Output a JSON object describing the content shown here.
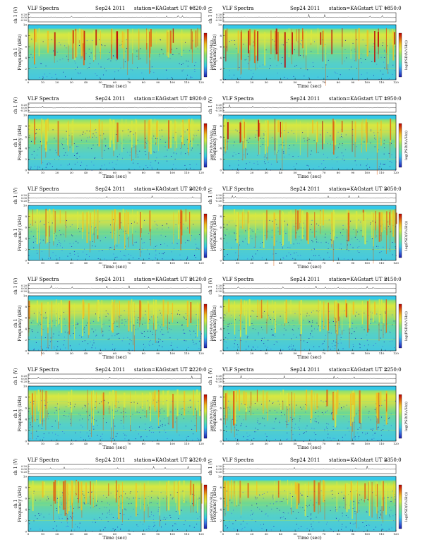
{
  "page": {
    "title_left": "VLF Spectra",
    "date": "Sep24 2011",
    "station": "station=KAG",
    "ut_prefix": "start  UT =",
    "panels": [
      {
        "ut": "1820:0",
        "burst": 1.0,
        "seed": 11
      },
      {
        "ut": "1850:0",
        "burst": 1.0,
        "seed": 23
      },
      {
        "ut": "1920:0",
        "burst": 0.65,
        "seed": 37
      },
      {
        "ut": "1950:0",
        "burst": 0.85,
        "seed": 41
      },
      {
        "ut": "2020:0",
        "burst": 0.7,
        "seed": 53
      },
      {
        "ut": "2050:0",
        "burst": 0.7,
        "seed": 67
      },
      {
        "ut": "2120:0",
        "burst": 0.5,
        "seed": 71
      },
      {
        "ut": "2150:0",
        "burst": 0.5,
        "seed": 83
      },
      {
        "ut": "2220:0",
        "burst": 0.55,
        "seed": 97
      },
      {
        "ut": "2250:0",
        "burst": 0.55,
        "seed": 101
      },
      {
        "ut": "2320:0",
        "burst": 0.6,
        "seed": 113
      },
      {
        "ut": "2350:0",
        "burst": 0.6,
        "seed": 127
      }
    ]
  },
  "labels": {
    "ch_label": "ch 1 (V)",
    "ch_ticks": [
      "0.20",
      "0.00",
      "-0.20"
    ],
    "ylabel_left": "ch 1\nFrequency (kHz)",
    "ylabel_right": "Frequency (kHz)",
    "xlabel": "Time  (sec)",
    "cbar_label": "log(PSD(V/√Hz))"
  },
  "chart_data": {
    "type": "heatmap",
    "xlabel": "Time (sec)",
    "ylabel": "Frequency (kHz)",
    "xlim": [
      0,
      120
    ],
    "ylim": [
      0,
      10
    ],
    "x_ticks": [
      0,
      10,
      20,
      30,
      40,
      50,
      60,
      70,
      80,
      90,
      100,
      110,
      120
    ],
    "y_ticks": [
      0,
      2,
      4,
      6,
      8,
      10
    ],
    "colormap": [
      "#1a1aa8",
      "#3a6fe0",
      "#35c8e8",
      "#5fe0a8",
      "#8ee070",
      "#d8e840",
      "#f0c020",
      "#e06010",
      "#c00000"
    ],
    "waveform_ylim": [
      -0.2,
      0.2
    ]
  }
}
